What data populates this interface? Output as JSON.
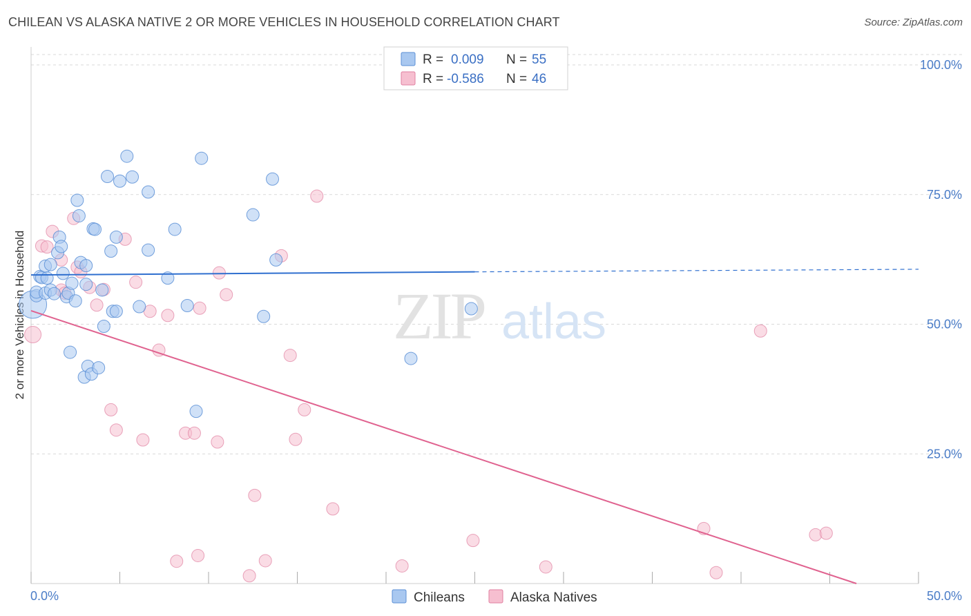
{
  "title": "CHILEAN VS ALASKA NATIVE 2 OR MORE VEHICLES IN HOUSEHOLD CORRELATION CHART",
  "source": "Source: ZipAtlas.com",
  "watermark": {
    "zip": "ZIP",
    "atlas": "atlas"
  },
  "colors": {
    "chileans_fill": "#a9c8f0",
    "chileans_stroke": "#5b8fd6",
    "chileans_line": "#2f6fcf",
    "alaska_fill": "#f6bfd0",
    "alaska_stroke": "#e07fa0",
    "alaska_line": "#e0628f",
    "tick": "#4a7cc7",
    "grid": "#d9d9d9"
  },
  "legend": {
    "rows": [
      {
        "r_label": "R =",
        "r_value": "0.009",
        "n_label": "N =",
        "n_value": "55"
      },
      {
        "r_label": "R =",
        "r_value": "-0.586",
        "n_label": "N =",
        "n_value": "46"
      }
    ]
  },
  "bottom_legend": [
    "Chileans",
    "Alaska Natives"
  ],
  "chart_data": {
    "type": "scatter",
    "title": "CHILEAN VS ALASKA NATIVE 2 OR MORE VEHICLES IN HOUSEHOLD CORRELATION CHART",
    "xlabel": "",
    "ylabel": "2 or more Vehicles in Household",
    "xlim": [
      0,
      50
    ],
    "ylim": [
      0,
      102
    ],
    "x_tick_labels": [
      "0.0%",
      "50.0%"
    ],
    "y_ticks": [
      25,
      50,
      75,
      100
    ],
    "y_tick_labels": [
      "25.0%",
      "50.0%",
      "75.0%",
      "100.0%"
    ],
    "grid": true,
    "legend_position": "top-center",
    "series": [
      {
        "name": "Chileans",
        "points": [
          [
            0.1,
            53.8
          ],
          [
            0.3,
            55.5
          ],
          [
            0.3,
            56.2
          ],
          [
            0.5,
            59.2
          ],
          [
            0.6,
            59.0
          ],
          [
            0.8,
            56.0
          ],
          [
            0.8,
            61.2
          ],
          [
            0.9,
            58.9
          ],
          [
            1.1,
            56.6
          ],
          [
            1.1,
            61.5
          ],
          [
            1.3,
            55.9
          ],
          [
            1.5,
            63.8
          ],
          [
            1.6,
            66.8
          ],
          [
            1.7,
            65.0
          ],
          [
            1.8,
            59.8
          ],
          [
            2.0,
            55.3
          ],
          [
            2.1,
            56.0
          ],
          [
            2.2,
            44.6
          ],
          [
            2.3,
            57.9
          ],
          [
            2.5,
            54.5
          ],
          [
            2.6,
            73.9
          ],
          [
            2.7,
            70.9
          ],
          [
            2.8,
            61.9
          ],
          [
            3.0,
            39.8
          ],
          [
            3.1,
            57.7
          ],
          [
            3.1,
            61.3
          ],
          [
            3.2,
            41.9
          ],
          [
            3.4,
            40.4
          ],
          [
            3.5,
            68.4
          ],
          [
            3.6,
            68.3
          ],
          [
            3.8,
            41.6
          ],
          [
            4.0,
            56.6
          ],
          [
            4.1,
            49.6
          ],
          [
            4.3,
            78.5
          ],
          [
            4.5,
            64.1
          ],
          [
            4.6,
            52.5
          ],
          [
            4.8,
            52.5
          ],
          [
            4.8,
            66.8
          ],
          [
            5.0,
            77.6
          ],
          [
            5.4,
            82.4
          ],
          [
            5.7,
            78.4
          ],
          [
            6.1,
            53.4
          ],
          [
            6.6,
            64.3
          ],
          [
            6.6,
            75.5
          ],
          [
            7.7,
            58.9
          ],
          [
            8.1,
            68.3
          ],
          [
            8.8,
            53.6
          ],
          [
            9.3,
            33.2
          ],
          [
            9.6,
            82.0
          ],
          [
            12.5,
            71.1
          ],
          [
            13.1,
            51.5
          ],
          [
            13.6,
            78.0
          ],
          [
            13.8,
            62.4
          ],
          [
            21.4,
            43.4
          ],
          [
            24.8,
            53.0
          ]
        ],
        "trend": {
          "x": [
            0,
            25
          ],
          "y": [
            59.5,
            60.1
          ],
          "dashed_extension": {
            "x": [
              25,
              50
            ],
            "y": [
              60.1,
              60.6
            ]
          }
        }
      },
      {
        "name": "Alaska Natives",
        "points": [
          [
            0.1,
            48.0
          ],
          [
            0.6,
            65.1
          ],
          [
            0.9,
            64.9
          ],
          [
            1.2,
            67.9
          ],
          [
            1.7,
            62.4
          ],
          [
            1.7,
            56.6
          ],
          [
            1.9,
            56.0
          ],
          [
            2.4,
            70.4
          ],
          [
            2.6,
            61.0
          ],
          [
            2.8,
            60.1
          ],
          [
            3.3,
            57.1
          ],
          [
            3.7,
            53.7
          ],
          [
            4.1,
            56.7
          ],
          [
            4.5,
            33.5
          ],
          [
            4.8,
            29.6
          ],
          [
            5.3,
            66.4
          ],
          [
            5.9,
            58.1
          ],
          [
            6.3,
            27.7
          ],
          [
            6.7,
            52.5
          ],
          [
            7.2,
            45.0
          ],
          [
            7.7,
            51.7
          ],
          [
            8.2,
            4.3
          ],
          [
            8.7,
            29.0
          ],
          [
            9.2,
            29.0
          ],
          [
            9.4,
            5.4
          ],
          [
            9.5,
            53.1
          ],
          [
            10.5,
            27.3
          ],
          [
            10.6,
            59.9
          ],
          [
            11.0,
            55.7
          ],
          [
            12.3,
            1.5
          ],
          [
            12.6,
            17.0
          ],
          [
            13.2,
            4.4
          ],
          [
            14.1,
            63.2
          ],
          [
            14.6,
            44.0
          ],
          [
            14.9,
            27.8
          ],
          [
            15.4,
            33.5
          ],
          [
            16.1,
            74.7
          ],
          [
            17.0,
            14.4
          ],
          [
            20.9,
            3.4
          ],
          [
            24.9,
            8.3
          ],
          [
            29.0,
            3.2
          ],
          [
            37.9,
            10.6
          ],
          [
            38.6,
            2.1
          ],
          [
            41.1,
            48.7
          ],
          [
            44.2,
            9.4
          ],
          [
            44.8,
            9.7
          ]
        ],
        "trend": {
          "x": [
            0,
            46.5
          ],
          "y": [
            52.6,
            0
          ]
        }
      }
    ]
  }
}
